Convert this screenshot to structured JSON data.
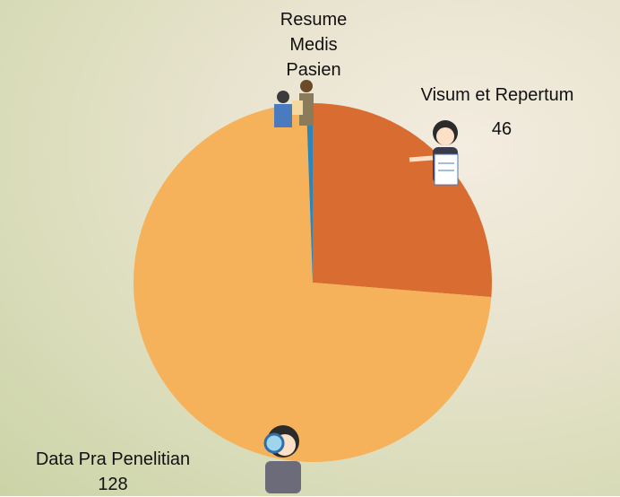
{
  "chart_data": {
    "type": "pie",
    "categories": [
      "Visum et Repertum",
      "Data Pra Penelitian",
      "Resume Medis Pasien"
    ],
    "values": [
      46,
      128,
      1
    ],
    "value_labels": [
      "46",
      "128",
      null
    ],
    "colors": [
      "#d96d31",
      "#f6b25a",
      "#2e86b8"
    ]
  }
}
